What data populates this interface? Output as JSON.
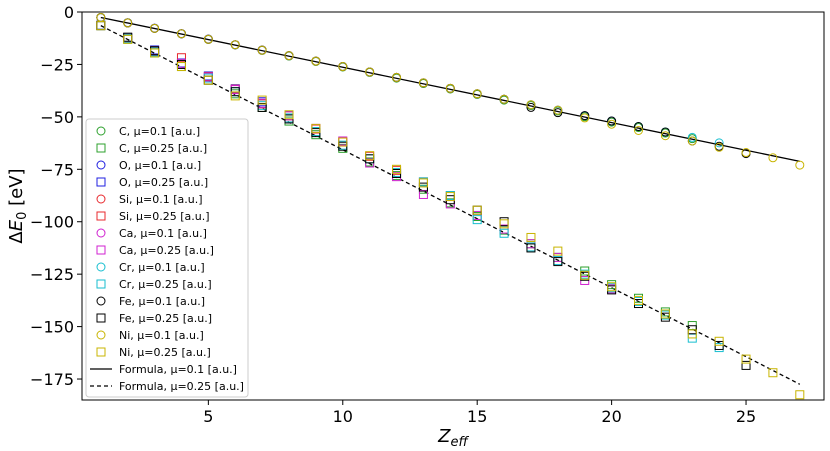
{
  "chart_data": {
    "type": "scatter",
    "xlabel": "Z_eff",
    "ylabel": "ΔE_0 [eV]",
    "xlim": [
      0.3,
      27.9
    ],
    "ylim": [
      -185,
      0
    ],
    "x_ticks": [
      5,
      10,
      15,
      20,
      25
    ],
    "y_ticks": [
      0,
      -25,
      -50,
      -75,
      -100,
      -125,
      -150,
      -175
    ],
    "grid": false,
    "legend_position": "center-left",
    "series": [
      {
        "name": "C, μ=0.1 [a.u.]",
        "marker": "circle",
        "color": "#2ca02c",
        "x": [
          1,
          2,
          3,
          4,
          5,
          6,
          7,
          8,
          9,
          10,
          11,
          12,
          13,
          14,
          15,
          16,
          17,
          18,
          19,
          20,
          21,
          22,
          23
        ],
        "y": [
          -2.6,
          -5.1,
          -7.8,
          -10.4,
          -13.1,
          -15.7,
          -18.3,
          -21.0,
          -23.6,
          -26.2,
          -28.8,
          -31.5,
          -34.1,
          -36.7,
          -39.3,
          -42.0,
          -44.6,
          -47.2,
          -49.9,
          -52.5,
          -55.1,
          -57.7,
          -60.4
        ]
      },
      {
        "name": "C, μ=0.25 [a.u.]",
        "marker": "square",
        "color": "#2ca02c",
        "x": [
          1,
          2,
          3,
          4,
          5,
          6,
          7,
          8,
          9,
          10,
          11,
          12,
          13,
          14,
          15,
          16,
          17,
          18,
          19,
          20,
          21,
          22,
          23
        ],
        "y": [
          -6.5,
          -13.0,
          -19.5,
          -26.0,
          -32.5,
          -39.0,
          -45.5,
          -52.0,
          -58.5,
          -65.0,
          -71.5,
          -78.0,
          -84.5,
          -91.0,
          -97.5,
          -104.0,
          -110.5,
          -117.0,
          -123.5,
          -130.0,
          -136.5,
          -143.0,
          -149.5
        ]
      },
      {
        "name": "O, μ=0.1 [a.u.]",
        "marker": "circle",
        "color": "#1f1fe0",
        "x": [
          1,
          2,
          3,
          4,
          5,
          6,
          7,
          8
        ],
        "y": [
          -2.6,
          -5.1,
          -7.7,
          -10.3,
          -12.9,
          -15.6,
          -18.1,
          -20.8
        ]
      },
      {
        "name": "O, μ=0.25 [a.u.]",
        "marker": "square",
        "color": "#1f1fe0",
        "x": [
          1,
          2,
          3,
          4,
          5,
          6,
          7,
          8
        ],
        "y": [
          -6.3,
          -12.2,
          -18.1,
          -24.3,
          -30.5,
          -36.6,
          -42.8,
          -49.1
        ]
      },
      {
        "name": "Si, μ=0.1 [a.u.]",
        "marker": "circle",
        "color": "#e8282d",
        "x": [
          1,
          2,
          3,
          4,
          5,
          6,
          7,
          8,
          9,
          10,
          11,
          12,
          13,
          14
        ],
        "y": [
          -2.6,
          -5.2,
          -7.8,
          -10.4,
          -13.0,
          -15.6,
          -18.2,
          -20.8,
          -23.4,
          -26.0,
          -28.6,
          -31.2,
          -33.8,
          -36.4
        ]
      },
      {
        "name": "Si, μ=0.25 [a.u.]",
        "marker": "square",
        "color": "#e8282d",
        "x": [
          1,
          2,
          3,
          4,
          5,
          6,
          7,
          8,
          9,
          10,
          11,
          12,
          13,
          14
        ],
        "y": [
          -6.3,
          -12.5,
          -18.5,
          -21.8,
          -30.8,
          -36.8,
          -43.8,
          -49.5,
          -55.8,
          -62.0,
          -68.8,
          -75.5,
          -81.0,
          -87.5
        ]
      },
      {
        "name": "Ca, μ=0.1 [a.u.]",
        "marker": "circle",
        "color": "#d020d0",
        "x": [
          1,
          2,
          3,
          4,
          5,
          6,
          7,
          8,
          9,
          10,
          11,
          12,
          13,
          14,
          15,
          16,
          17,
          18,
          19,
          20
        ],
        "y": [
          -2.6,
          -5.2,
          -7.8,
          -10.4,
          -13.0,
          -15.6,
          -18.2,
          -20.8,
          -23.4,
          -26.0,
          -28.6,
          -31.2,
          -33.8,
          -36.4,
          -39.0,
          -41.6,
          -44.2,
          -46.8,
          -49.4,
          -52.0
        ]
      },
      {
        "name": "Ca, μ=0.25 [a.u.]",
        "marker": "square",
        "color": "#d020d0",
        "x": [
          1,
          2,
          3,
          4,
          5,
          6,
          7,
          8,
          9,
          10,
          11,
          12,
          13,
          14,
          15,
          16,
          17,
          18,
          19,
          20
        ],
        "y": [
          -6.3,
          -12.5,
          -18.7,
          -24.5,
          -31.0,
          -37.0,
          -43.5,
          -49.5,
          -55.5,
          -61.5,
          -72.0,
          -78.5,
          -87.0,
          -91.5,
          -97.0,
          -103.5,
          -110.5,
          -117.0,
          -128.0,
          -132.0
        ]
      },
      {
        "name": "Cr, μ=0.1 [a.u.]",
        "marker": "circle",
        "color": "#17becf",
        "x": [
          1,
          2,
          3,
          4,
          5,
          6,
          7,
          8,
          9,
          10,
          11,
          12,
          13,
          14,
          15,
          16,
          17,
          18,
          19,
          20,
          21,
          22,
          23,
          24
        ],
        "y": [
          -2.6,
          -5.2,
          -7.8,
          -10.4,
          -13.0,
          -15.6,
          -18.2,
          -20.8,
          -23.4,
          -26.0,
          -28.6,
          -31.2,
          -33.8,
          -36.4,
          -39.0,
          -41.6,
          -44.2,
          -46.8,
          -49.4,
          -52.0,
          -54.6,
          -57.2,
          -59.8,
          -62.4
        ]
      },
      {
        "name": "Cr, μ=0.25 [a.u.]",
        "marker": "square",
        "color": "#17becf",
        "x": [
          1,
          2,
          3,
          4,
          5,
          6,
          7,
          8,
          9,
          10,
          11,
          12,
          13,
          14,
          15,
          16,
          17,
          18,
          19,
          20,
          21,
          22,
          23,
          24
        ],
        "y": [
          -6.3,
          -12.5,
          -19.0,
          -25.0,
          -31.5,
          -38.0,
          -44.5,
          -50.5,
          -57.0,
          -63.5,
          -70.0,
          -76.5,
          -81.0,
          -87.5,
          -99.0,
          -105.5,
          -112.0,
          -118.5,
          -125.0,
          -131.5,
          -138.0,
          -144.5,
          -155.5,
          -160.0
        ]
      },
      {
        "name": "Fe, μ=0.1 [a.u.]",
        "marker": "circle",
        "color": "#000000",
        "x": [
          1,
          2,
          3,
          4,
          5,
          6,
          7,
          8,
          9,
          10,
          11,
          12,
          13,
          14,
          15,
          16,
          17,
          18,
          19,
          20,
          21,
          22,
          23,
          24,
          25
        ],
        "y": [
          -2.6,
          -5.2,
          -7.8,
          -10.4,
          -13.0,
          -15.6,
          -18.2,
          -20.8,
          -23.4,
          -26.0,
          -28.6,
          -31.2,
          -33.8,
          -36.4,
          -39.0,
          -41.6,
          -45.5,
          -48.0,
          -49.4,
          -52.0,
          -54.6,
          -57.2,
          -61.5,
          -64.0,
          -67.5
        ]
      },
      {
        "name": "Fe, μ=0.25 [a.u.]",
        "marker": "square",
        "color": "#000000",
        "x": [
          1,
          2,
          3,
          4,
          5,
          6,
          7,
          8,
          9,
          10,
          11,
          12,
          13,
          14,
          15,
          16,
          17,
          18,
          19,
          20,
          21,
          22,
          23,
          24,
          25
        ],
        "y": [
          -6.5,
          -12.0,
          -18.5,
          -25.0,
          -32.5,
          -38.0,
          -45.5,
          -51.0,
          -57.5,
          -64.0,
          -70.0,
          -77.0,
          -83.5,
          -89.5,
          -94.5,
          -100.0,
          -112.5,
          -119.0,
          -126.0,
          -132.5,
          -139.0,
          -145.5,
          -151.5,
          -159.0,
          -168.5
        ]
      },
      {
        "name": "Ni, μ=0.1 [a.u.]",
        "marker": "circle",
        "color": "#c8b400",
        "x": [
          1,
          2,
          3,
          4,
          5,
          6,
          7,
          8,
          9,
          10,
          11,
          12,
          13,
          14,
          15,
          16,
          17,
          18,
          19,
          20,
          21,
          22,
          23,
          24,
          25,
          26,
          27
        ],
        "y": [
          -2.6,
          -5.2,
          -7.8,
          -10.4,
          -13.0,
          -15.6,
          -18.2,
          -20.8,
          -23.4,
          -26.0,
          -28.6,
          -31.2,
          -33.8,
          -36.4,
          -39.0,
          -41.6,
          -44.2,
          -46.8,
          -50.5,
          -53.5,
          -56.5,
          -59.0,
          -61.5,
          -64.5,
          -67.0,
          -69.5,
          -73.0
        ]
      },
      {
        "name": "Ni, μ=0.25 [a.u.]",
        "marker": "square",
        "color": "#c8b400",
        "x": [
          1,
          2,
          3,
          4,
          5,
          6,
          7,
          8,
          9,
          10,
          11,
          12,
          13,
          14,
          15,
          16,
          17,
          18,
          19,
          20,
          21,
          22,
          23,
          24,
          25,
          26,
          27
        ],
        "y": [
          -6.5,
          -13.0,
          -19.5,
          -26.0,
          -32.5,
          -40.0,
          -42.0,
          -49.0,
          -55.5,
          -62.0,
          -68.5,
          -75.0,
          -81.5,
          -88.0,
          -94.5,
          -101.0,
          -107.5,
          -114.0,
          -125.5,
          -131.0,
          -137.5,
          -144.0,
          -153.5,
          -157.0,
          -165.5,
          -172.0,
          -182.5
        ]
      }
    ],
    "lines": [
      {
        "name": "Formula, μ=0.1 [a.u.]",
        "style": "solid",
        "color": "#000000",
        "x": [
          1,
          27
        ],
        "y": [
          -2.6,
          -71.2
        ]
      },
      {
        "name": "Formula, μ=0.25 [a.u.]",
        "style": "dashed",
        "color": "#000000",
        "x": [
          1,
          27
        ],
        "y": [
          -6.5,
          -177.5
        ]
      }
    ]
  }
}
